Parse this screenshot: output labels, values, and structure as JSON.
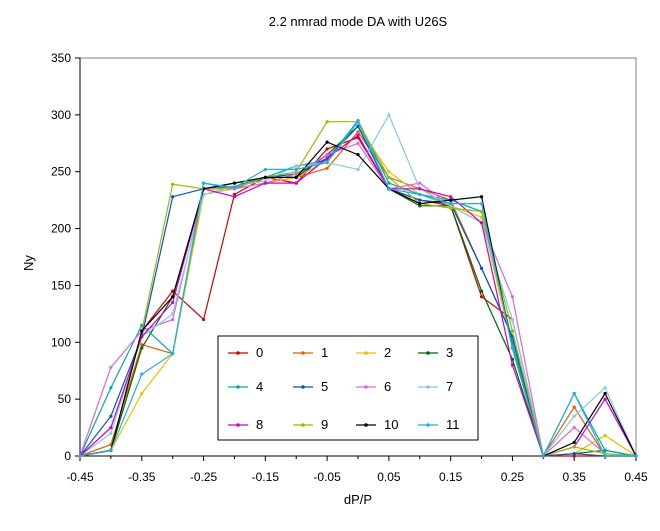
{
  "chart_data": {
    "type": "line",
    "title": "2.2 nmrad mode DA with U26S",
    "xlabel": "dP/P",
    "ylabel": "Ny",
    "xlim": [
      -0.45,
      0.45
    ],
    "ylim": [
      0,
      350
    ],
    "xticks": [
      -0.45,
      -0.35,
      -0.25,
      -0.15,
      -0.05,
      0.05,
      0.15,
      0.25,
      0.35,
      0.45
    ],
    "xtick_labels": [
      "-0.45",
      "-0.35",
      "-0.25",
      "-0.15",
      "-0.05",
      "0.05",
      "0.15",
      "0.25",
      "0.35",
      "0.45"
    ],
    "yticks": [
      0,
      50,
      100,
      150,
      200,
      250,
      300,
      350
    ],
    "ytick_labels": [
      "0",
      "50",
      "100",
      "150",
      "200",
      "250",
      "300",
      "350"
    ],
    "grid": false,
    "legend_position": "bottom-center",
    "x": [
      -0.45,
      -0.4,
      -0.35,
      -0.3,
      -0.25,
      -0.2,
      -0.15,
      -0.1,
      -0.05,
      0.0,
      0.05,
      0.1,
      0.15,
      0.2,
      0.25,
      0.3,
      0.35,
      0.4,
      0.45
    ],
    "series": [
      {
        "name": "0",
        "color": "#cc0000",
        "values": [
          0,
          5,
          110,
          145,
          120,
          230,
          245,
          240,
          270,
          280,
          235,
          225,
          220,
          140,
          120,
          0,
          0,
          0,
          0
        ]
      },
      {
        "name": "1",
        "color": "#e06000",
        "values": [
          0,
          10,
          98,
          90,
          235,
          235,
          240,
          245,
          253,
          285,
          245,
          235,
          225,
          165,
          105,
          0,
          43,
          0,
          0
        ]
      },
      {
        "name": "2",
        "color": "#e8c000",
        "values": [
          0,
          5,
          55,
          90,
          230,
          235,
          240,
          245,
          260,
          290,
          250,
          230,
          220,
          210,
          95,
          0,
          2,
          18,
          0
        ]
      },
      {
        "name": "3",
        "color": "#006600",
        "values": [
          0,
          5,
          95,
          140,
          235,
          240,
          245,
          245,
          265,
          290,
          235,
          220,
          220,
          145,
          85,
          0,
          2,
          5,
          0
        ]
      },
      {
        "name": "4",
        "color": "#00aaaa",
        "values": [
          0,
          60,
          115,
          90,
          240,
          235,
          245,
          255,
          260,
          295,
          240,
          230,
          225,
          215,
          100,
          0,
          55,
          5,
          0
        ]
      },
      {
        "name": "5",
        "color": "#0055cc",
        "values": [
          0,
          35,
          105,
          228,
          235,
          237,
          245,
          248,
          262,
          290,
          235,
          225,
          222,
          165,
          105,
          0,
          2,
          0,
          0
        ]
      },
      {
        "name": "6",
        "color": "#dd66dd",
        "values": [
          0,
          78,
          110,
          120,
          235,
          235,
          240,
          248,
          265,
          275,
          235,
          240,
          220,
          205,
          140,
          0,
          25,
          2,
          0
        ]
      },
      {
        "name": "7",
        "color": "#88c8e8",
        "values": [
          0,
          20,
          105,
          125,
          230,
          237,
          242,
          255,
          258,
          252,
          300,
          235,
          220,
          205,
          120,
          0,
          35,
          60,
          0
        ]
      },
      {
        "name": "8",
        "color": "#cc00cc",
        "values": [
          0,
          25,
          105,
          135,
          235,
          228,
          240,
          240,
          262,
          282,
          235,
          235,
          228,
          205,
          80,
          0,
          8,
          50,
          0
        ]
      },
      {
        "name": "9",
        "color": "#99bb00",
        "values": [
          0,
          5,
          110,
          239,
          235,
          236,
          245,
          250,
          294,
          294,
          245,
          222,
          218,
          215,
          110,
          0,
          8,
          2,
          0
        ]
      },
      {
        "name": "10",
        "color": "#000000",
        "values": [
          0,
          5,
          110,
          140,
          235,
          240,
          245,
          245,
          276,
          265,
          235,
          222,
          225,
          228,
          95,
          0,
          12,
          55,
          0
        ]
      },
      {
        "name": "11",
        "color": "#20b0e0",
        "values": [
          0,
          5,
          72,
          90,
          240,
          236,
          252,
          252,
          258,
          294,
          235,
          230,
          222,
          222,
          95,
          0,
          55,
          0,
          0
        ]
      }
    ]
  }
}
